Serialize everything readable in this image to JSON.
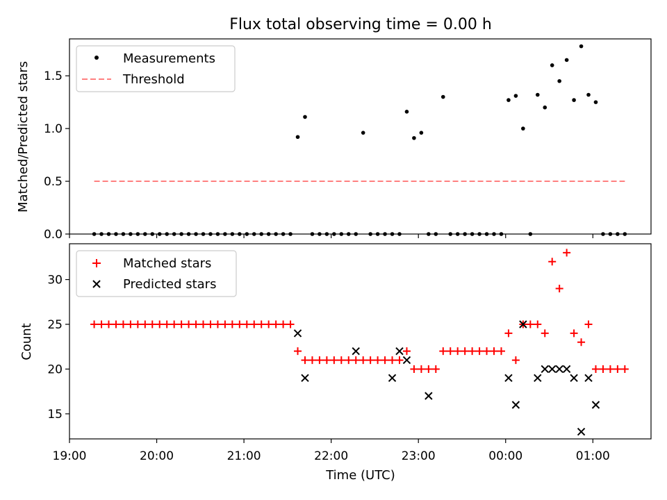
{
  "figure": {
    "title": "Flux total observing time = 0.00 h",
    "xlabel": "Time (UTC)"
  },
  "chart_data": [
    {
      "type": "scatter",
      "ylabel": "Matched/Predicted stars",
      "ylim": [
        0,
        1.85
      ],
      "yticks": [
        "0.0",
        "0.5",
        "1.0",
        "1.5"
      ],
      "xlim": [
        "19:00",
        "01:40"
      ],
      "xticks": [
        "19:00",
        "20:00",
        "21:00",
        "22:00",
        "23:00",
        "00:00",
        "01:00"
      ],
      "legend_position": "upper-left",
      "series": [
        {
          "name": "Measurements",
          "marker": "dot",
          "color": "#000000",
          "x": [
            "19:17",
            "19:22",
            "19:27",
            "19:32",
            "19:37",
            "19:42",
            "19:47",
            "19:52",
            "19:57",
            "20:02",
            "20:07",
            "20:12",
            "20:17",
            "20:22",
            "20:27",
            "20:32",
            "20:37",
            "20:42",
            "20:47",
            "20:52",
            "20:57",
            "21:02",
            "21:07",
            "21:12",
            "21:17",
            "21:22",
            "21:27",
            "21:32",
            "21:37",
            "21:42",
            "21:47",
            "21:52",
            "21:57",
            "22:02",
            "22:07",
            "22:12",
            "22:17",
            "22:22",
            "22:27",
            "22:32",
            "22:37",
            "22:42",
            "22:47",
            "22:52",
            "22:57",
            "23:02",
            "23:07",
            "23:12",
            "23:17",
            "23:22",
            "23:27",
            "23:32",
            "23:37",
            "23:42",
            "23:47",
            "23:52",
            "23:57",
            "00:02",
            "00:07",
            "00:12",
            "00:17",
            "00:22",
            "00:27",
            "00:32",
            "00:37",
            "00:42",
            "00:47",
            "00:52",
            "00:57",
            "01:02",
            "01:07",
            "01:12",
            "01:17",
            "01:22"
          ],
          "y": [
            0,
            0,
            0,
            0,
            0,
            0,
            0,
            0,
            0,
            0,
            0,
            0,
            0,
            0,
            0,
            0,
            0,
            0,
            0,
            0,
            0,
            0,
            0,
            0,
            0,
            0,
            0,
            0,
            0.92,
            1.11,
            0,
            0,
            0,
            0,
            0,
            0,
            0,
            0.96,
            0,
            0,
            0,
            0,
            0,
            1.16,
            0.91,
            0.96,
            0,
            0,
            1.3,
            0,
            0,
            0,
            0,
            0,
            0,
            0,
            0,
            1.27,
            1.31,
            1.0,
            0,
            1.32,
            1.2,
            1.6,
            1.45,
            1.65,
            1.27,
            1.78,
            1.32,
            1.25,
            0,
            0,
            0,
            0
          ]
        },
        {
          "name": "Threshold",
          "style": "dashed",
          "color": "#ff7f7f",
          "x": [
            "19:17",
            "01:22"
          ],
          "y": [
            0.5,
            0.5
          ]
        }
      ]
    },
    {
      "type": "scatter",
      "ylabel": "Count",
      "ylim": [
        12.2,
        34
      ],
      "yticks": [
        "15",
        "20",
        "25",
        "30"
      ],
      "xlim": [
        "19:00",
        "01:40"
      ],
      "xticks": [
        "19:00",
        "20:00",
        "21:00",
        "22:00",
        "23:00",
        "00:00",
        "01:00"
      ],
      "legend_position": "upper-left",
      "series": [
        {
          "name": "Matched stars",
          "marker": "plus",
          "color": "#ff0000",
          "x": [
            "19:17",
            "19:22",
            "19:27",
            "19:32",
            "19:37",
            "19:42",
            "19:47",
            "19:52",
            "19:57",
            "20:02",
            "20:07",
            "20:12",
            "20:17",
            "20:22",
            "20:27",
            "20:32",
            "20:37",
            "20:42",
            "20:47",
            "20:52",
            "20:57",
            "21:02",
            "21:07",
            "21:12",
            "21:17",
            "21:22",
            "21:27",
            "21:32",
            "21:37",
            "21:42",
            "21:47",
            "21:52",
            "21:57",
            "22:02",
            "22:07",
            "22:12",
            "22:17",
            "22:22",
            "22:27",
            "22:32",
            "22:37",
            "22:42",
            "22:47",
            "22:52",
            "22:57",
            "23:02",
            "23:07",
            "23:12",
            "23:17",
            "23:22",
            "23:27",
            "23:32",
            "23:37",
            "23:42",
            "23:47",
            "23:52",
            "23:57",
            "00:02",
            "00:07",
            "00:12",
            "00:17",
            "00:22",
            "00:27",
            "00:32",
            "00:37",
            "00:42",
            "00:47",
            "00:52",
            "00:57",
            "01:02",
            "01:07",
            "01:12",
            "01:17",
            "01:22"
          ],
          "y": [
            25,
            25,
            25,
            25,
            25,
            25,
            25,
            25,
            25,
            25,
            25,
            25,
            25,
            25,
            25,
            25,
            25,
            25,
            25,
            25,
            25,
            25,
            25,
            25,
            25,
            25,
            25,
            25,
            22,
            21,
            21,
            21,
            21,
            21,
            21,
            21,
            21,
            21,
            21,
            21,
            21,
            21,
            21,
            22,
            20,
            20,
            20,
            20,
            22,
            22,
            22,
            22,
            22,
            22,
            22,
            22,
            22,
            24,
            21,
            25,
            25,
            25,
            24,
            32,
            29,
            33,
            24,
            23,
            25,
            20,
            20,
            20,
            20,
            20
          ]
        },
        {
          "name": "Predicted stars",
          "marker": "x",
          "color": "#000000",
          "x": [
            "21:37",
            "21:42",
            "22:17",
            "22:42",
            "22:47",
            "22:52",
            "23:07",
            "00:02",
            "00:07",
            "00:12",
            "00:22",
            "00:27",
            "00:32",
            "00:37",
            "00:42",
            "00:47",
            "00:52",
            "00:57",
            "01:02"
          ],
          "y": [
            24,
            19,
            22,
            19,
            22,
            21,
            17,
            19,
            16,
            25,
            19,
            20,
            20,
            20,
            20,
            19,
            13,
            19,
            16
          ]
        }
      ]
    }
  ]
}
